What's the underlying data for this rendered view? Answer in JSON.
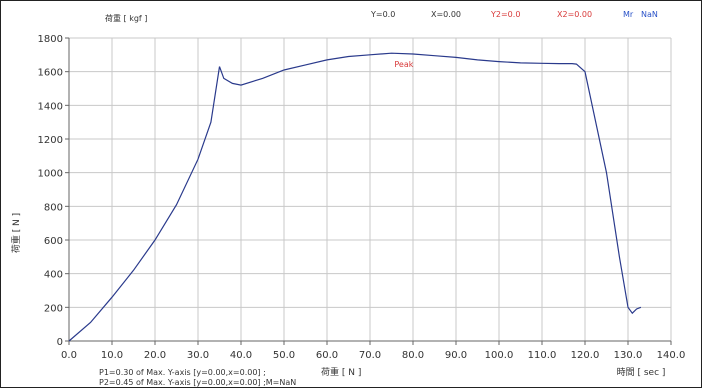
{
  "chart_data": {
    "type": "line",
    "title": "",
    "unit_label_top": "荷重 [ kgf ]",
    "ylabel": "荷重 [ N ]",
    "xlabel": "時間 [ sec ]",
    "x_bottom_label": "荷重 [ N ]",
    "xlim": [
      0,
      140
    ],
    "ylim": [
      0,
      1800
    ],
    "x_ticks": [
      0,
      10,
      20,
      30,
      40,
      50,
      60,
      70,
      80,
      90,
      100,
      110,
      120,
      130,
      140
    ],
    "x_tick_labels": [
      "0.0",
      "10.0",
      "20.0",
      "30.0",
      "40.0",
      "50.0",
      "60.0",
      "70.0",
      "80.0",
      "90.0",
      "100.0",
      "110.0",
      "120.0",
      "130.0",
      "140.0"
    ],
    "y_ticks": [
      0,
      200,
      400,
      600,
      800,
      1000,
      1200,
      1400,
      1600,
      1800
    ],
    "y_tick_labels": [
      "0",
      "200",
      "400",
      "600",
      "800",
      "1000",
      "1200",
      "1400",
      "1600",
      "1800"
    ],
    "grid": true,
    "series": [
      {
        "color": "#2a3a8c",
        "x": [
          0,
          5,
          10,
          15,
          20,
          25,
          30,
          33,
          35,
          36,
          38,
          40,
          45,
          50,
          55,
          60,
          65,
          70,
          75,
          80,
          85,
          90,
          95,
          100,
          105,
          110,
          114,
          117,
          118,
          120,
          125,
          128,
          130,
          131,
          132,
          133
        ],
        "y": [
          0,
          110,
          260,
          420,
          600,
          810,
          1080,
          1300,
          1630,
          1560,
          1530,
          1520,
          1560,
          1610,
          1640,
          1670,
          1690,
          1700,
          1710,
          1705,
          1695,
          1685,
          1670,
          1660,
          1652,
          1650,
          1648,
          1648,
          1645,
          1600,
          1000,
          500,
          200,
          165,
          190,
          200
        ]
      }
    ],
    "annotations": [
      {
        "text": "Peak",
        "x": 78,
        "y": 1705,
        "color": "#d83a3a"
      }
    ]
  },
  "header": {
    "y_readout": "Y=0.0",
    "x_readout": "X=0.00",
    "y2_readout": "Y2=0.0",
    "x2_readout": "X2=0.00",
    "mr_label": "Mr",
    "mr_value": "NaN",
    "colors": {
      "black": "#333333",
      "red": "#d83a3a",
      "blue": "#2a52c8"
    }
  },
  "footer": {
    "p1": "P1=0.30 of Max. Y-axis [y=0.00,x=0.00] ;",
    "p2": "P2=0.45 of Max. Y-axis [y=0.00,x=0.00] ;M=NaN"
  }
}
